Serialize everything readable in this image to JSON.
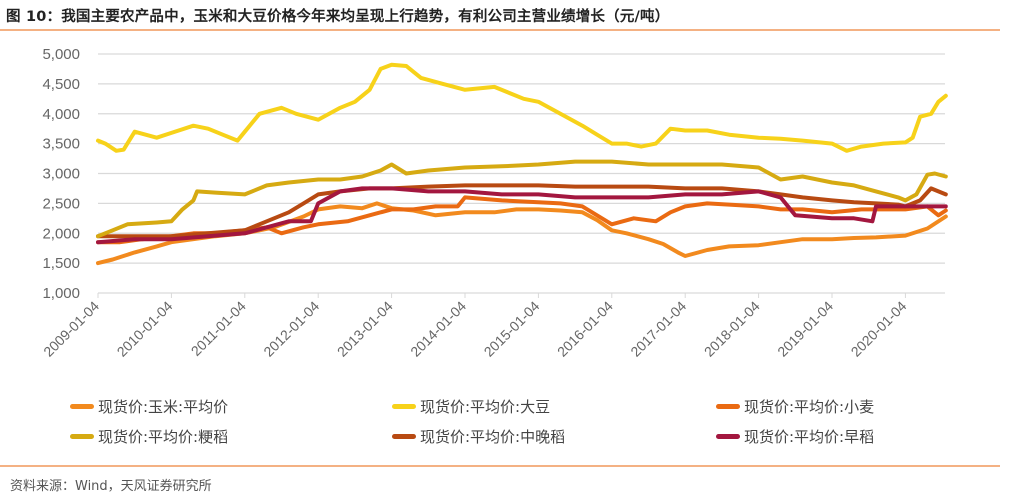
{
  "header": {
    "title": "图 10：我国主要农产品中，玉米和大豆价格今年来均呈现上行趋势，有利公司主营业绩增长（元/吨）"
  },
  "footer": {
    "source": "资料来源：Wind，天风证券研究所"
  },
  "legend": [
    {
      "label": "现货价:玉米:平均价",
      "color": "#f28a1e"
    },
    {
      "label": "现货价:平均价:大豆",
      "color": "#f7d21a"
    },
    {
      "label": "现货价:平均价:小麦",
      "color": "#ea6a12"
    },
    {
      "label": "现货价:平均价:粳稻",
      "color": "#d6aa12"
    },
    {
      "label": "现货价:平均价:中晚稻",
      "color": "#b84a12"
    },
    {
      "label": "现货价:平均价:早稻",
      "color": "#a3173f"
    }
  ],
  "chart_data": {
    "type": "line",
    "title": "我国主要农产品中，玉米和大豆价格今年来均呈现上行趋势，有利公司主营业绩增长（元/吨）",
    "xlabel": "",
    "ylabel": "元/吨",
    "ylim": [
      1000,
      5000
    ],
    "yticks": [
      1000,
      1500,
      2000,
      2500,
      3000,
      3500,
      4000,
      4500,
      5000
    ],
    "ytick_labels": [
      "1,000",
      "1,500",
      "2,000",
      "2,500",
      "3,000",
      "3,500",
      "4,000",
      "4,500",
      "5,000"
    ],
    "xtick_labels": [
      "2009-01-04",
      "2010-01-04",
      "2011-01-04",
      "2012-01-04",
      "2013-01-04",
      "2014-01-04",
      "2015-01-04",
      "2016-01-04",
      "2017-01-04",
      "2018-01-04",
      "2019-01-04",
      "2020-01-04"
    ],
    "xlim": [
      2009.0,
      2020.55
    ],
    "grid": "horizontal",
    "legend_position": "bottom",
    "series": [
      {
        "name": "现货价:玉米:平均价",
        "color": "#f28a1e",
        "x": [
          2009.0,
          2009.2,
          2009.5,
          2009.8,
          2010.0,
          2010.3,
          2010.6,
          2011.0,
          2011.4,
          2011.8,
          2012.0,
          2012.3,
          2012.6,
          2012.8,
          2013.0,
          2013.3,
          2013.6,
          2014.0,
          2014.4,
          2014.7,
          2015.0,
          2015.3,
          2015.6,
          2015.8,
          2016.0,
          2016.2,
          2016.5,
          2016.7,
          2016.9,
          2017.0,
          2017.3,
          2017.6,
          2018.0,
          2018.3,
          2018.6,
          2019.0,
          2019.3,
          2019.6,
          2020.0,
          2020.3,
          2020.55
        ],
        "values": [
          1500,
          1560,
          1680,
          1780,
          1850,
          1900,
          1950,
          2000,
          2100,
          2280,
          2400,
          2450,
          2420,
          2500,
          2420,
          2380,
          2300,
          2350,
          2350,
          2400,
          2400,
          2380,
          2350,
          2220,
          2050,
          2000,
          1900,
          1820,
          1680,
          1620,
          1720,
          1780,
          1800,
          1850,
          1900,
          1900,
          1920,
          1930,
          1960,
          2080,
          2280
        ]
      },
      {
        "name": "现货价:平均价:大豆",
        "color": "#f7d21a",
        "x": [
          2009.0,
          2009.1,
          2009.25,
          2009.35,
          2009.5,
          2009.8,
          2010.0,
          2010.3,
          2010.5,
          2010.7,
          2010.9,
          2011.0,
          2011.2,
          2011.5,
          2011.7,
          2012.0,
          2012.3,
          2012.5,
          2012.7,
          2012.85,
          2013.0,
          2013.2,
          2013.4,
          2013.7,
          2014.0,
          2014.4,
          2014.8,
          2015.0,
          2015.3,
          2015.6,
          2015.8,
          2016.0,
          2016.2,
          2016.4,
          2016.6,
          2016.8,
          2017.0,
          2017.3,
          2017.6,
          2018.0,
          2018.3,
          2018.6,
          2019.0,
          2019.2,
          2019.4,
          2019.7,
          2020.0,
          2020.1,
          2020.2,
          2020.35,
          2020.45,
          2020.55
        ],
        "values": [
          3550,
          3500,
          3380,
          3400,
          3700,
          3600,
          3680,
          3800,
          3750,
          3650,
          3550,
          3700,
          4000,
          4100,
          4000,
          3900,
          4100,
          4200,
          4400,
          4750,
          4820,
          4800,
          4600,
          4500,
          4400,
          4450,
          4250,
          4200,
          4000,
          3800,
          3650,
          3500,
          3500,
          3450,
          3500,
          3750,
          3720,
          3720,
          3650,
          3600,
          3580,
          3550,
          3500,
          3380,
          3450,
          3500,
          3520,
          3600,
          3950,
          4000,
          4200,
          4300
        ]
      },
      {
        "name": "现货价:平均价:小麦",
        "color": "#ea6a12",
        "x": [
          2009.0,
          2009.3,
          2009.6,
          2010.0,
          2010.3,
          2010.6,
          2011.0,
          2011.3,
          2011.5,
          2011.8,
          2012.0,
          2012.4,
          2012.7,
          2013.0,
          2013.3,
          2013.6,
          2013.9,
          2014.0,
          2014.5,
          2015.0,
          2015.3,
          2015.6,
          2016.0,
          2016.3,
          2016.6,
          2016.8,
          2017.0,
          2017.3,
          2017.6,
          2018.0,
          2018.3,
          2018.6,
          2019.0,
          2019.4,
          2019.8,
          2020.0,
          2020.3,
          2020.45,
          2020.55
        ],
        "values": [
          1850,
          1850,
          1900,
          1950,
          2000,
          2000,
          2050,
          2100,
          2000,
          2100,
          2150,
          2200,
          2300,
          2400,
          2400,
          2450,
          2450,
          2600,
          2550,
          2520,
          2500,
          2450,
          2150,
          2250,
          2200,
          2350,
          2450,
          2500,
          2480,
          2450,
          2400,
          2400,
          2350,
          2400,
          2400,
          2400,
          2450,
          2300,
          2380
        ]
      },
      {
        "name": "现货价:平均价:粳稻",
        "color": "#d6aa12",
        "x": [
          2009.0,
          2009.2,
          2009.4,
          2009.8,
          2010.0,
          2010.15,
          2010.3,
          2010.35,
          2010.6,
          2011.0,
          2011.3,
          2011.6,
          2012.0,
          2012.3,
          2012.6,
          2012.85,
          2013.0,
          2013.2,
          2013.5,
          2014.0,
          2014.5,
          2015.0,
          2015.5,
          2016.0,
          2016.5,
          2017.0,
          2017.5,
          2018.0,
          2018.3,
          2018.6,
          2019.0,
          2019.3,
          2019.6,
          2019.9,
          2020.0,
          2020.15,
          2020.3,
          2020.4,
          2020.55
        ],
        "values": [
          1950,
          2050,
          2150,
          2180,
          2200,
          2400,
          2550,
          2700,
          2680,
          2650,
          2800,
          2850,
          2900,
          2900,
          2950,
          3050,
          3150,
          3000,
          3050,
          3100,
          3120,
          3150,
          3200,
          3200,
          3150,
          3150,
          3150,
          3100,
          2900,
          2950,
          2850,
          2800,
          2700,
          2600,
          2550,
          2650,
          2980,
          3000,
          2950
        ]
      },
      {
        "name": "现货价:平均价:中晚稻",
        "color": "#b84a12",
        "x": [
          2009.0,
          2009.5,
          2010.0,
          2010.5,
          2011.0,
          2011.3,
          2011.6,
          2011.8,
          2012.0,
          2012.3,
          2012.7,
          2013.0,
          2013.5,
          2014.0,
          2014.5,
          2015.0,
          2015.5,
          2016.0,
          2016.5,
          2017.0,
          2017.5,
          2018.0,
          2018.3,
          2018.6,
          2019.0,
          2019.3,
          2019.6,
          2019.9,
          2020.0,
          2020.2,
          2020.35,
          2020.45,
          2020.55
        ],
        "values": [
          1950,
          1950,
          1950,
          2000,
          2050,
          2200,
          2350,
          2500,
          2650,
          2700,
          2750,
          2750,
          2780,
          2800,
          2800,
          2800,
          2780,
          2780,
          2780,
          2750,
          2750,
          2700,
          2650,
          2600,
          2550,
          2520,
          2500,
          2480,
          2450,
          2550,
          2750,
          2700,
          2650
        ]
      },
      {
        "name": "现货价:平均价:早稻",
        "color": "#a3173f",
        "x": [
          2009.0,
          2009.5,
          2010.0,
          2010.5,
          2011.0,
          2011.3,
          2011.6,
          2011.9,
          2012.0,
          2012.3,
          2012.6,
          2012.8,
          2013.0,
          2013.5,
          2014.0,
          2014.5,
          2015.0,
          2015.5,
          2016.0,
          2016.5,
          2017.0,
          2017.5,
          2018.0,
          2018.3,
          2018.5,
          2019.0,
          2019.3,
          2019.55,
          2019.6,
          2020.0,
          2020.3,
          2020.55
        ],
        "values": [
          1850,
          1900,
          1900,
          1950,
          2000,
          2100,
          2200,
          2200,
          2500,
          2700,
          2750,
          2750,
          2750,
          2700,
          2700,
          2650,
          2650,
          2600,
          2600,
          2600,
          2650,
          2650,
          2700,
          2600,
          2300,
          2250,
          2250,
          2200,
          2450,
          2450,
          2450,
          2450
        ]
      }
    ]
  }
}
